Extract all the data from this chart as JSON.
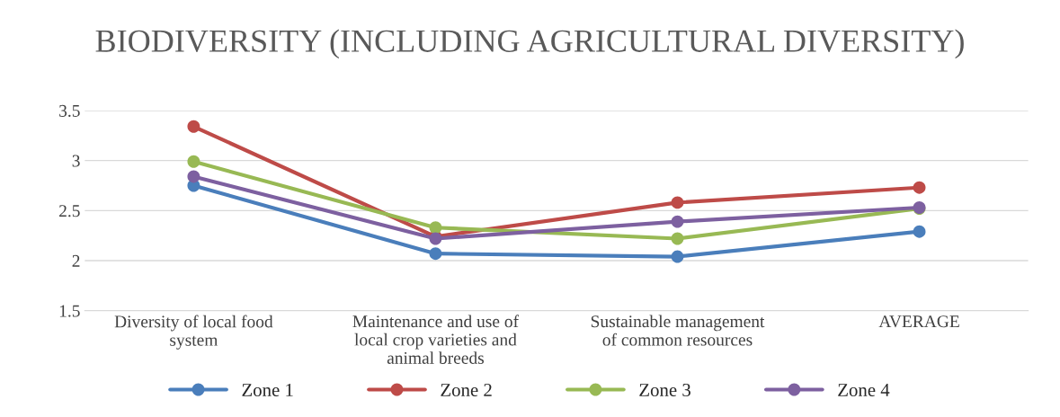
{
  "chart_data": {
    "type": "line",
    "title": "BIODIVERSITY (INCLUDING AGRICULTURAL DIVERSITY)",
    "categories": [
      "Diversity of local food\nsystem",
      "Maintenance and use of\nlocal crop varieties and\nanimal breeds",
      "Sustainable management\nof common resources",
      "AVERAGE"
    ],
    "series": [
      {
        "name": "Zone 1",
        "color": "#4a7ebb",
        "values": [
          2.75,
          2.07,
          2.04,
          2.29
        ]
      },
      {
        "name": "Zone 2",
        "color": "#be4b48",
        "values": [
          3.34,
          2.24,
          2.58,
          2.73
        ]
      },
      {
        "name": "Zone 3",
        "color": "#98b954",
        "values": [
          2.99,
          2.33,
          2.22,
          2.52
        ]
      },
      {
        "name": "Zone 4",
        "color": "#7d60a0",
        "values": [
          2.84,
          2.22,
          2.39,
          2.53
        ]
      }
    ],
    "ylim": [
      1.5,
      3.5
    ],
    "yticks": [
      1.5,
      2,
      2.5,
      3,
      3.5
    ],
    "grid": "y",
    "legend": "bottom",
    "marker": "circle",
    "line_style": "solid"
  }
}
